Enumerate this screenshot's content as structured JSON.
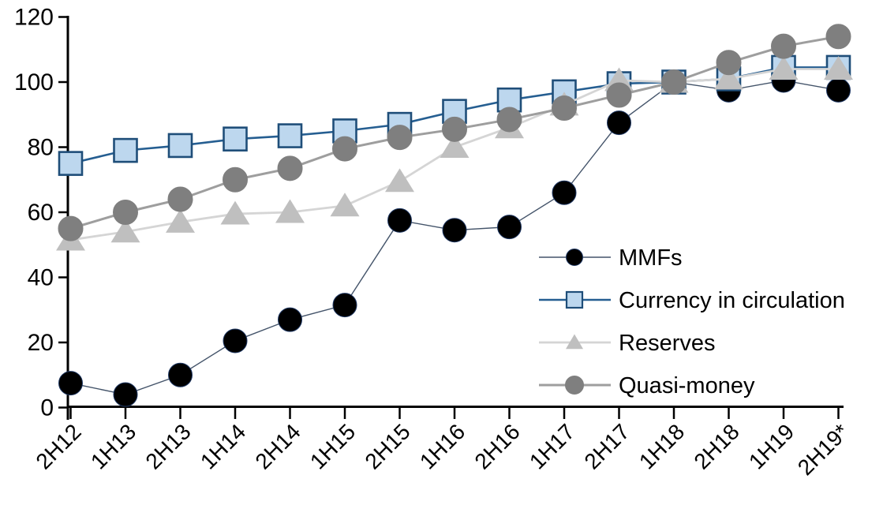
{
  "chart_data": {
    "type": "line",
    "title": "",
    "xlabel": "",
    "ylabel": "",
    "ylim": [
      0,
      120
    ],
    "y_ticks": [
      0,
      20,
      40,
      60,
      80,
      100,
      120
    ],
    "grid": false,
    "legend_position": "center-right",
    "categories": [
      "2H12",
      "1H13",
      "2H13",
      "1H14",
      "2H14",
      "1H15",
      "2H15",
      "1H16",
      "2H16",
      "1H17",
      "2H17",
      "1H18",
      "2H18",
      "1H19",
      "2H19*"
    ],
    "series": [
      {
        "name": "MMFs",
        "marker": "circle",
        "line_color": "#44546A",
        "marker_fill": "#000000",
        "marker_edge": "#1F3864",
        "values": [
          7.5,
          4,
          10,
          20.5,
          27,
          31.5,
          57.5,
          54.5,
          55.5,
          66,
          87.5,
          100,
          97.5,
          100.5,
          97.5
        ]
      },
      {
        "name": "Currency in circulation",
        "marker": "square",
        "line_color": "#255E91",
        "marker_fill": "#BDD7EE",
        "marker_edge": "#1F4E79",
        "values": [
          75,
          79,
          80.5,
          82.5,
          83.5,
          85,
          87,
          91,
          94.5,
          97,
          99.5,
          100,
          101,
          104.5,
          104.5
        ]
      },
      {
        "name": "Reserves",
        "marker": "triangle",
        "line_color": "#D5D5D5",
        "marker_fill": "#BFBFBF",
        "marker_edge": "#BFBFBF",
        "values": [
          51.5,
          54,
          57,
          59.5,
          60,
          62,
          69.5,
          80,
          86,
          93,
          100.5,
          100,
          101,
          104,
          104
        ]
      },
      {
        "name": "Quasi-money",
        "marker": "circle",
        "line_color": "#9E9E9E",
        "marker_fill": "#7F7F7F",
        "marker_edge": "#7F7F7F",
        "values": [
          55,
          60,
          64,
          70,
          73.5,
          79.5,
          83,
          85.5,
          88.5,
          92,
          96,
          100,
          106,
          111,
          114
        ]
      }
    ],
    "axis_color": "#000000",
    "background_color": "#FFFFFF"
  }
}
